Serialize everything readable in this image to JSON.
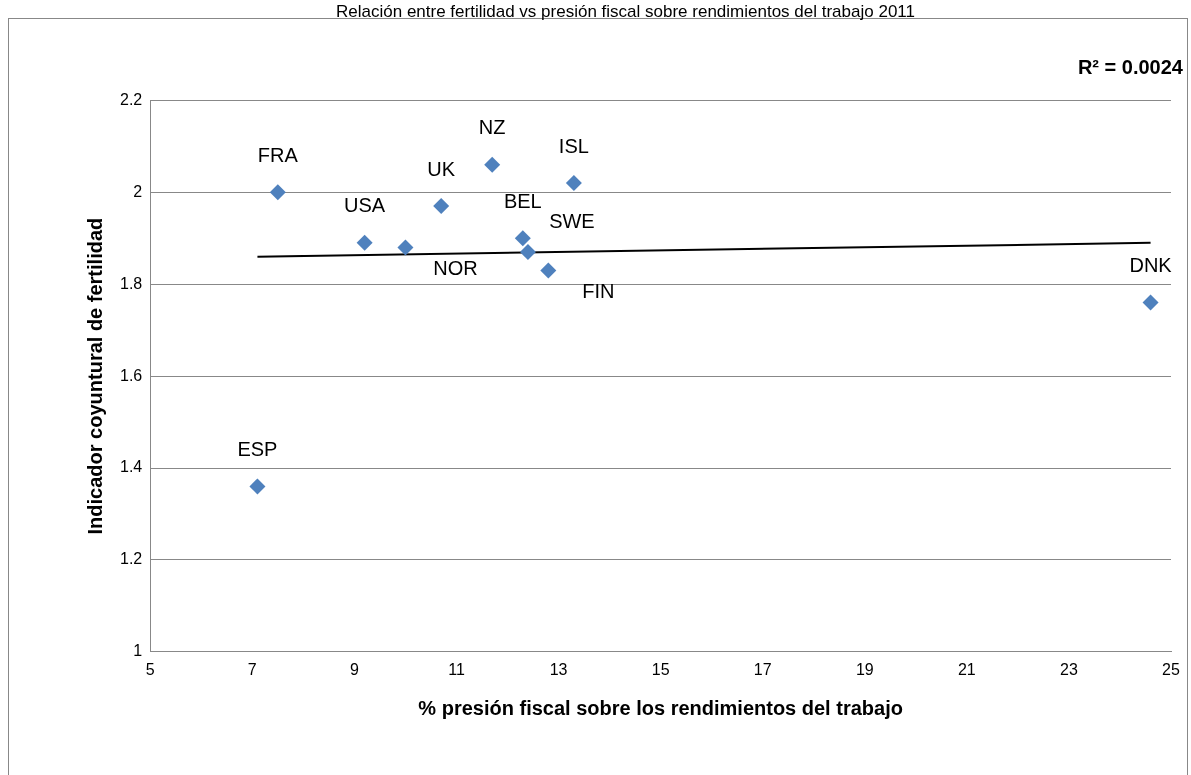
{
  "chart_data": {
    "type": "scatter",
    "title": "Relación entre fertilidad vs presión fiscal sobre rendimientos del trabajo 2011",
    "xlabel": "% presión fiscal sobre los rendimientos del trabajo",
    "ylabel": "Indicador coyuntural de fertilidad",
    "x": [
      7.1,
      7.5,
      9.2,
      10.0,
      10.7,
      11.7,
      12.3,
      12.4,
      12.8,
      13.3,
      24.6
    ],
    "series": [
      {
        "type": "scatter",
        "color": "#4f81bd",
        "values": [
          1.36,
          2.0,
          1.89,
          1.88,
          1.97,
          2.06,
          1.9,
          1.87,
          1.83,
          2.02,
          1.76
        ],
        "value_labels": [
          "ESP",
          "FRA",
          "USA",
          "NOR",
          "UK",
          "NZ",
          "BEL",
          "SWE",
          "FIN",
          "ISL",
          "DNK"
        ]
      },
      {
        "type": "line",
        "marker": "none",
        "color": "#000000",
        "x": [
          7.1,
          24.6
        ],
        "values": [
          1.86,
          1.89
        ]
      }
    ],
    "annotations": [
      "R² = 0.0024"
    ],
    "xlim": [
      5,
      25
    ],
    "xticks": [
      5,
      7,
      9,
      11,
      13,
      15,
      17,
      19,
      21,
      23,
      25
    ],
    "ylim": [
      1,
      2.2
    ],
    "yticks": [
      1,
      1.2,
      1.4,
      1.6,
      1.8,
      2,
      2.2
    ],
    "grid": "y",
    "legend": false,
    "marker": "diamond"
  }
}
